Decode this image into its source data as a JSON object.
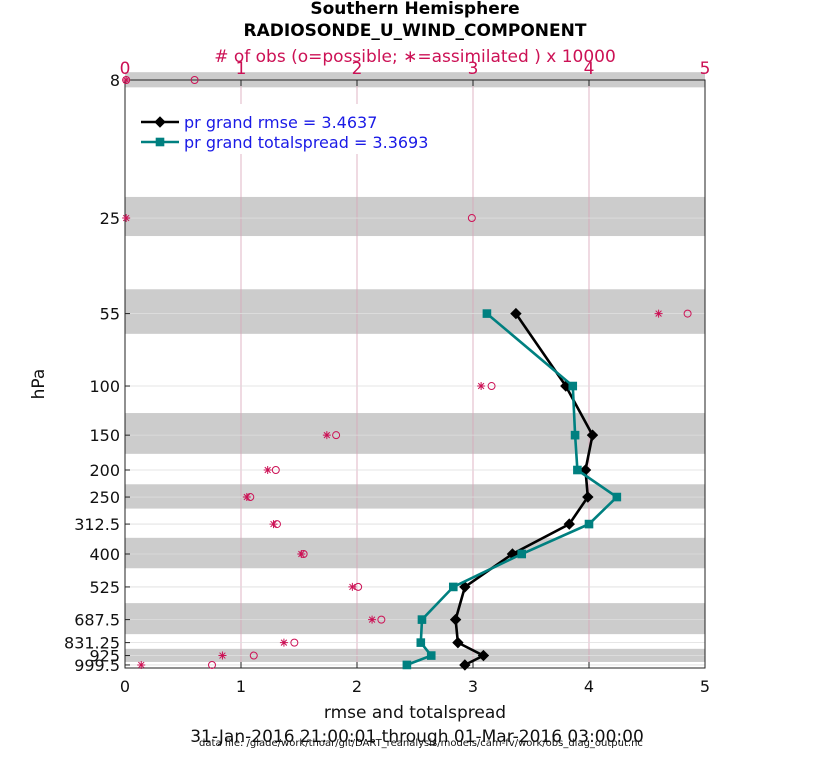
{
  "chart_data": {
    "type": "line",
    "title": "Southern Hemisphere",
    "subtitle": "RADIOSONDE_U_WIND_COMPONENT",
    "top_axis_label": "# of obs (o=possible; ∗=assimilated ) x 10000",
    "xlabel": "rmse and totalspread",
    "ylabel": "hPa",
    "date_range": "31-Jan-2016 21:00:01 through 01-Mar-2016 03:00:00",
    "footnote": "data file: /glade/work/thoar/git/DART_reanalysis/models/cam-fv/work/obs_diag_output.nc",
    "xlim": [
      0,
      5
    ],
    "xticks": [
      "0",
      "1",
      "2",
      "3",
      "4",
      "5"
    ],
    "top_xlim": [
      0,
      5
    ],
    "top_xticks": [
      "0",
      "1",
      "2",
      "3",
      "4",
      "5"
    ],
    "grid": "vertical",
    "y_scale": "log-reversed",
    "ylim": [
      1025,
      8
    ],
    "levels": [
      8,
      25,
      55,
      100,
      150,
      200,
      250,
      312.5,
      400,
      525,
      687.5,
      831.25,
      925,
      999.5
    ],
    "level_labels": [
      "8",
      "25",
      "55",
      "100",
      "150",
      "200",
      "250",
      "312.5",
      "400",
      "525",
      "687.5",
      "831.25",
      "925",
      "999.5"
    ],
    "shaded_bands": [
      [
        7.5,
        8.5
      ],
      [
        21,
        29
      ],
      [
        45,
        65
      ],
      [
        125,
        175
      ],
      [
        225,
        275
      ],
      [
        350,
        450
      ],
      [
        600,
        775
      ],
      [
        875,
        975
      ]
    ],
    "legend_position": "top-left",
    "series": [
      {
        "name": "pr grand rmse = 3.4637",
        "color": "#000000",
        "marker": "diamond",
        "points": [
          [
            3.37,
            55
          ],
          [
            3.8,
            100
          ],
          [
            4.03,
            150
          ],
          [
            3.97,
            200
          ],
          [
            3.99,
            250
          ],
          [
            3.83,
            312.5
          ],
          [
            3.34,
            400
          ],
          [
            2.93,
            525
          ],
          [
            2.85,
            687.5
          ],
          [
            2.87,
            831.25
          ],
          [
            3.09,
            925
          ],
          [
            2.93,
            999.5
          ]
        ]
      },
      {
        "name": "pr grand totalspread = 3.3693",
        "color": "#008080",
        "marker": "square",
        "points": [
          [
            3.12,
            55
          ],
          [
            3.86,
            100
          ],
          [
            3.88,
            150
          ],
          [
            3.9,
            200
          ],
          [
            4.24,
            250
          ],
          [
            4.0,
            312.5
          ],
          [
            3.42,
            400
          ],
          [
            2.83,
            525
          ],
          [
            2.56,
            687.5
          ],
          [
            2.55,
            831.25
          ],
          [
            2.64,
            925
          ],
          [
            2.43,
            999.5
          ]
        ]
      }
    ],
    "obs_possible": {
      "marker": "circle",
      "color": "#cc1155",
      "points": [
        [
          0.01,
          8
        ],
        [
          0.6,
          8
        ],
        [
          2.99,
          25
        ],
        [
          4.85,
          55
        ],
        [
          3.16,
          100
        ],
        [
          1.82,
          150
        ],
        [
          1.3,
          200
        ],
        [
          1.08,
          250
        ],
        [
          1.31,
          312.5
        ],
        [
          1.54,
          400
        ],
        [
          2.01,
          525
        ],
        [
          2.21,
          687.5
        ],
        [
          1.46,
          831.25
        ],
        [
          1.11,
          925
        ],
        [
          0.75,
          999.5
        ]
      ]
    },
    "obs_assimilated": {
      "marker": "asterisk",
      "color": "#cc1155",
      "points": [
        [
          0.01,
          8
        ],
        [
          0.01,
          25
        ],
        [
          4.6,
          55
        ],
        [
          3.07,
          100
        ],
        [
          1.74,
          150
        ],
        [
          1.23,
          200
        ],
        [
          1.05,
          250
        ],
        [
          1.28,
          312.5
        ],
        [
          1.52,
          400
        ],
        [
          1.96,
          525
        ],
        [
          2.13,
          687.5
        ],
        [
          1.37,
          831.25
        ],
        [
          0.84,
          925
        ],
        [
          0.14,
          999.5
        ]
      ]
    }
  }
}
